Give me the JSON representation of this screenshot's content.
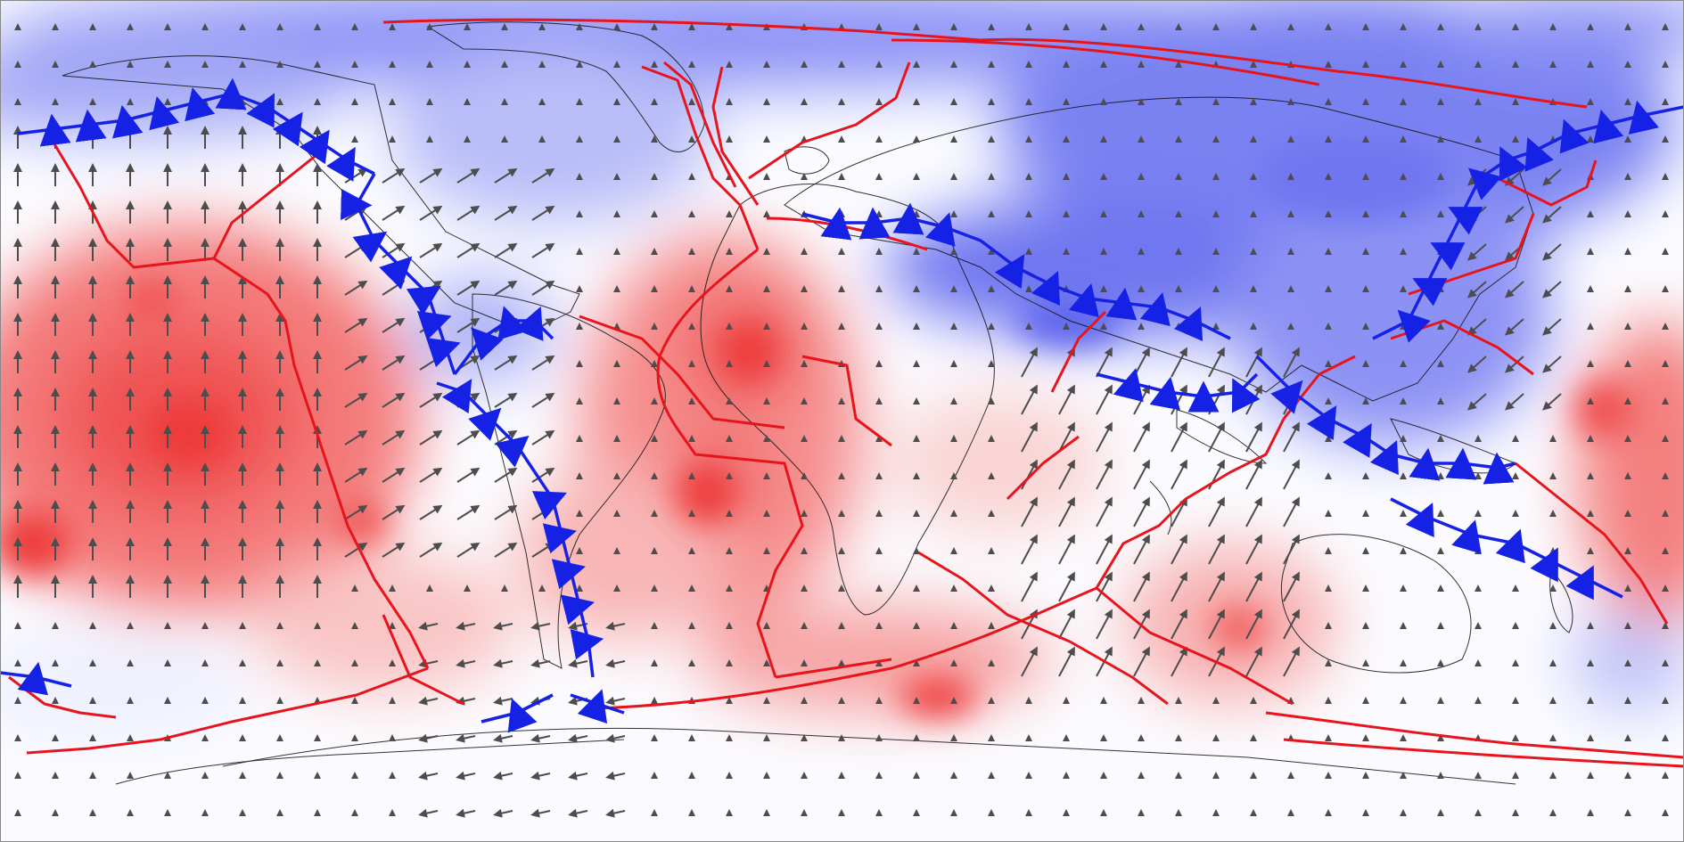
{
  "map": {
    "projection": "equirectangular",
    "colors": {
      "compression": "#ff1a1a",
      "extension": "#4a55f0",
      "neutral": "#fbfbff",
      "ridge_boundary": "#e8141c",
      "subduction_boundary": "#1522e6",
      "velocity_arrow": "#4d4d4d",
      "coastline": "#111111"
    },
    "velocity_field": {
      "arrows": "present"
    }
  }
}
